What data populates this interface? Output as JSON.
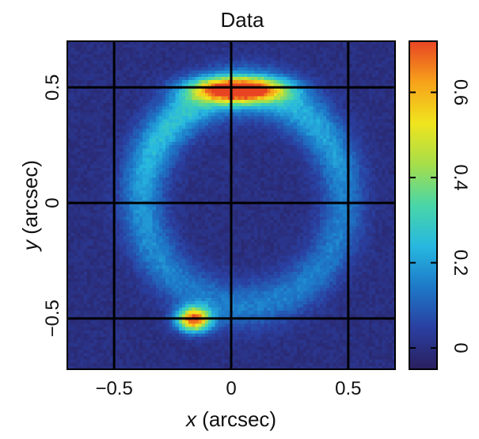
{
  "chart_data": {
    "type": "heatmap",
    "title": "Data",
    "xlabel": {
      "var": "x",
      "unit": " (arcsec)"
    },
    "ylabel": {
      "var": "y",
      "unit": " (arcsec)"
    },
    "xlim": [
      -0.7,
      0.7
    ],
    "ylim": [
      -0.72,
      0.7
    ],
    "x_ticks": [
      {
        "value": -0.5,
        "label": "−0.5"
      },
      {
        "value": 0,
        "label": "0"
      },
      {
        "value": 0.5,
        "label": "0.5"
      }
    ],
    "y_ticks": [
      {
        "value": -0.5,
        "label": "−0.5"
      },
      {
        "value": 0,
        "label": "0"
      },
      {
        "value": 0.5,
        "label": "0.5"
      }
    ],
    "grid_lines_x": [
      -0.5,
      0,
      0.5
    ],
    "grid_lines_y": [
      -0.5,
      0,
      0.5
    ],
    "colorbar": {
      "range": [
        -0.05,
        0.72
      ],
      "ticks": [
        {
          "value": 0,
          "label": "0"
        },
        {
          "value": 0.2,
          "label": "0.2"
        },
        {
          "value": 0.4,
          "label": "0.4"
        },
        {
          "value": 0.6,
          "label": "0.6"
        }
      ],
      "stops": [
        "#2a1f5e",
        "#2a3fa0",
        "#1d78c8",
        "#27b8e0",
        "#49d6a8",
        "#a6de4a",
        "#f0e41e",
        "#f7a21a",
        "#e84424"
      ]
    },
    "features": {
      "ring": {
        "center": [
          0.05,
          0.02
        ],
        "radius_x": 0.43,
        "radius_y": 0.46,
        "width": 0.07,
        "amplitude": 0.2
      },
      "peaks": [
        {
          "x": 0.03,
          "y": 0.49,
          "sx": 0.13,
          "sy": 0.035,
          "value": 0.72
        },
        {
          "x": -0.16,
          "y": -0.5,
          "sx": 0.05,
          "sy": 0.035,
          "value": 0.7
        }
      ],
      "background_noise": 0.02,
      "pixel_size": 0.014
    }
  }
}
